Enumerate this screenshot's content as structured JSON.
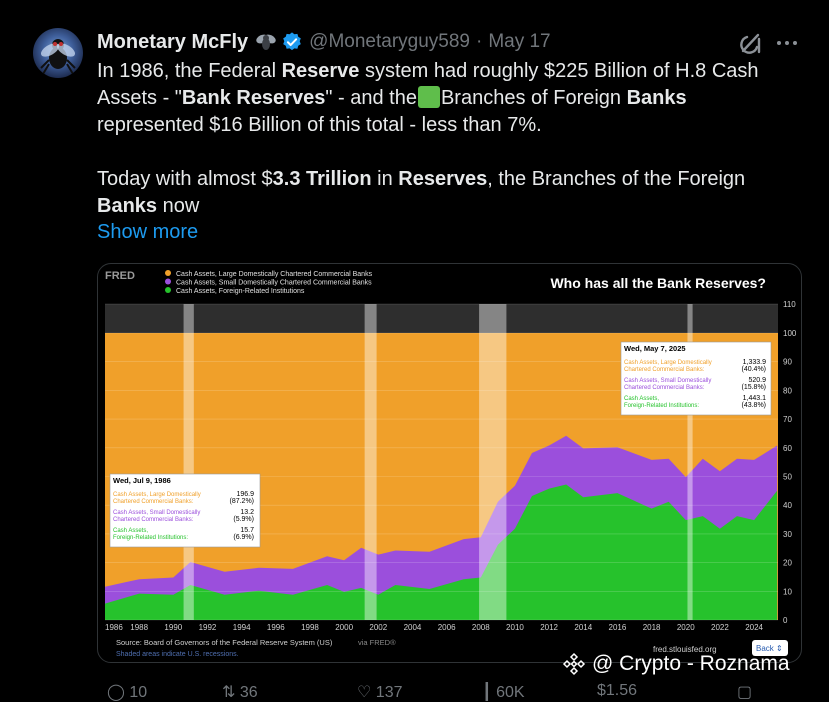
{
  "post": {
    "author_name": "Monetary McFly",
    "handle": "@Monetaryguy589",
    "separator": "·",
    "date": "May 17",
    "p1": [
      {
        "t": "In 1986, the Federal "
      },
      {
        "t": "Reserve",
        "b": true
      },
      {
        "t": " system had roughly $225 Billion of H.8 Cash Assets - \""
      },
      {
        "t": "Bank Reserves",
        "b": true
      },
      {
        "t": "\" - and the"
      },
      {
        "sq": true
      },
      {
        "t": "Branches of Foreign "
      },
      {
        "t": "Banks",
        "b": true
      },
      {
        "t": " represented $16 Billion of this total - less than 7%."
      }
    ],
    "p2": [
      {
        "t": "Today with almost $"
      },
      {
        "t": "3.3 Trillion",
        "b": true
      },
      {
        "t": " in "
      },
      {
        "t": "Reserves",
        "b": true
      },
      {
        "t": ", the Branches of the Foreign "
      },
      {
        "t": "Banks",
        "b": true
      },
      {
        "t": " now"
      }
    ],
    "show_more": "Show more"
  },
  "icons": {
    "avatar": "fly-avatar",
    "badge": "fly-emoji-icon",
    "verified": "verified-badge-icon",
    "grok": "grok-icon",
    "more": "more-options-icon"
  },
  "chart_data": {
    "type": "area",
    "title": "Who has all the Bank Reserves?",
    "fred_logo": "FRED",
    "legend": [
      {
        "name": "Cash Assets, Large Domestically Chartered Commercial Banks",
        "color": "#f0a02a"
      },
      {
        "name": "Cash Assets, Small Domestically Chartered Commercial Banks",
        "color": "#9b4fdc"
      },
      {
        "name": "Cash Assets, Foreign-Related Institutions",
        "color": "#26c22c"
      }
    ],
    "x_range": [
      1986,
      2025.4
    ],
    "y_range": [
      0,
      110
    ],
    "y_ticks": [
      0,
      10,
      20,
      30,
      40,
      50,
      60,
      70,
      80,
      90,
      100,
      110
    ],
    "x_ticks": [
      "1986",
      "1988",
      "1990",
      "1992",
      "1994",
      "1996",
      "1998",
      "2000",
      "2002",
      "2004",
      "2006",
      "2008",
      "2010",
      "2012",
      "2014",
      "2016",
      "2018",
      "2020",
      "2022",
      "2024"
    ],
    "recessions": [
      [
        1990.6,
        1991.2
      ],
      [
        2001.2,
        2001.9
      ],
      [
        2007.9,
        2009.5
      ],
      [
        2020.1,
        2020.4
      ]
    ],
    "series_shares": {
      "x": [
        1986,
        1988,
        1990,
        1991,
        1993,
        1995,
        1997,
        1999,
        2000,
        2001,
        2002,
        2003,
        2005,
        2007,
        2008,
        2009,
        2010,
        2011,
        2012,
        2013,
        2014,
        2016,
        2018,
        2019,
        2020,
        2021,
        2022,
        2023,
        2024,
        2025.35
      ],
      "foreign": [
        6.9,
        8,
        10,
        11,
        10,
        9,
        10,
        11,
        11,
        10,
        10,
        11,
        12,
        13,
        16,
        25,
        33,
        42,
        47,
        46,
        44,
        43,
        40,
        40,
        36,
        35,
        33,
        35,
        36,
        43.8
      ],
      "foreign_plus_small": [
        12.8,
        13,
        16,
        19,
        18,
        17,
        19,
        21,
        22,
        24,
        24,
        23,
        25,
        27,
        30,
        40,
        48,
        57,
        62,
        63,
        61,
        59,
        57,
        55,
        51,
        55,
        53,
        55,
        57,
        59.6
      ]
    },
    "tooltip_1986": {
      "date": "Wed, Jul 9, 1986",
      "rows": [
        {
          "label": "Cash Assets, Large Domestically Chartered Commercial Banks:",
          "value": "196.9",
          "pct": "(87.2%)",
          "color": "#f0a02a"
        },
        {
          "label": "Cash Assets, Small Domestically Chartered Commercial Banks:",
          "value": "13.2",
          "pct": "(5.9%)",
          "color": "#9b4fdc"
        },
        {
          "label": "Cash Assets, Foreign-Related Institutions:",
          "value": "15.7",
          "pct": "(6.9%)",
          "color": "#26c22c"
        }
      ]
    },
    "tooltip_2025": {
      "date": "Wed, May 7, 2025",
      "rows": [
        {
          "label": "Cash Assets, Large Domestically Chartered Commercial Banks:",
          "value": "1,333.9",
          "pct": "(40.4%)",
          "color": "#f0a02a"
        },
        {
          "label": "Cash Assets, Small Domestically Chartered Commercial Banks:",
          "value": "520.9",
          "pct": "(15.8%)",
          "color": "#9b4fdc"
        },
        {
          "label": "Cash Assets, Foreign-Related Institutions:",
          "value": "1,443.1",
          "pct": "(43.8%)",
          "color": "#26c22c"
        }
      ]
    },
    "source": "Source: Board of Governors of the Federal Reserve System (US)",
    "source_via": "via FRED®",
    "recession_note": "Shaded areas indicate U.S. recessions.",
    "site": "fred.stlouisfed.org",
    "back_button": "Back"
  },
  "watermark": "@ Crypto - Roznama",
  "actions": [
    {
      "name": "reply",
      "count": "10"
    },
    {
      "name": "repost",
      "count": "36"
    },
    {
      "name": "like",
      "count": "137"
    },
    {
      "name": "views",
      "count": "60K"
    },
    {
      "name": "tip",
      "count": "$1.56"
    }
  ]
}
